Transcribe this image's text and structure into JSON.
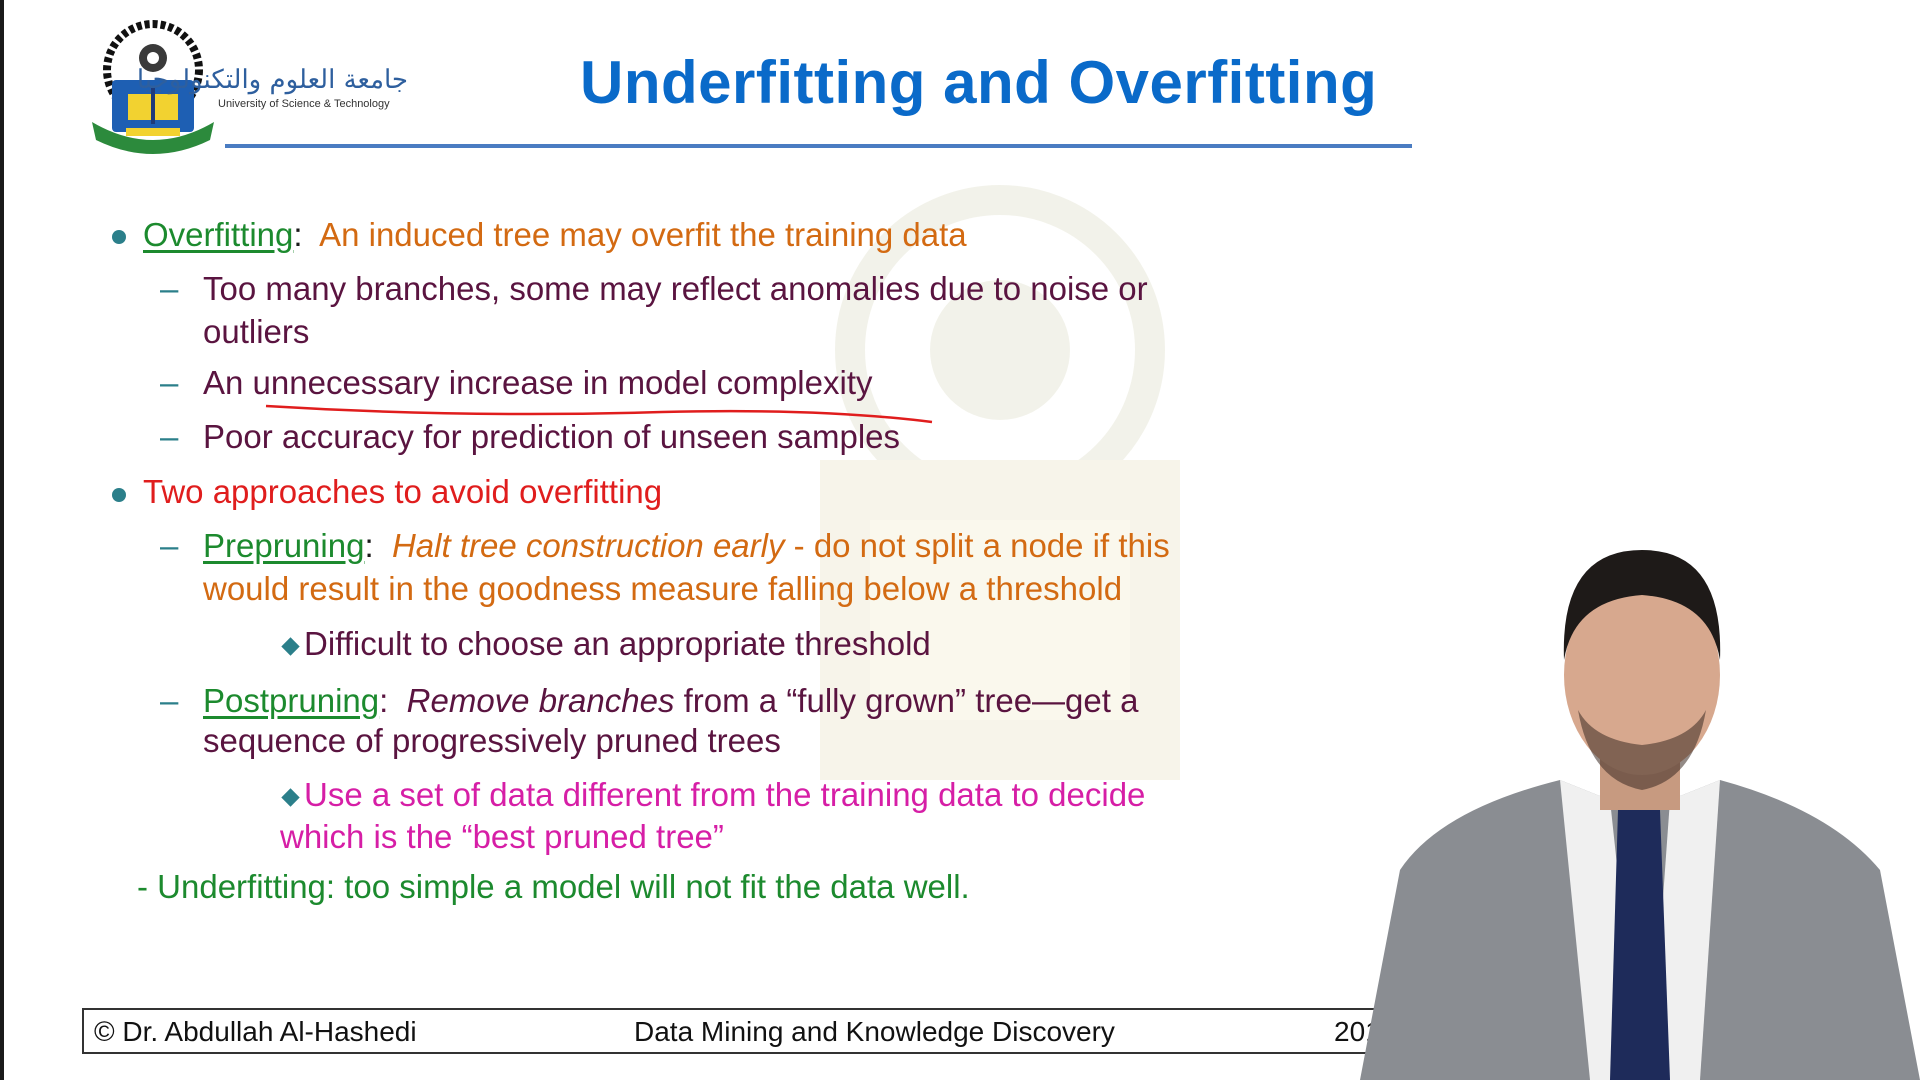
{
  "header": {
    "title": "Underfitting and Overfitting",
    "logo_arabic": "جامعة العلوم والتكنولوجيا",
    "logo_english": "University of Science & Technology"
  },
  "content": {
    "b1": {
      "label": "Overfitting",
      "colon": ":",
      "text": "An induced tree may overfit the training data"
    },
    "b1_s1_l1": "Too many branches, some may reflect anomalies due to noise or",
    "b1_s1_l2": "outliers",
    "b1_s2": "An unnecessary increase in model complexity",
    "b1_s3": "Poor accuracy for prediction of unseen samples",
    "b2": "Two approaches to avoid overfitting",
    "pre": {
      "label": "Prepruning",
      "colon": ":",
      "italic": "Halt tree construction early",
      "rest": "do not split a node if this",
      "line2": "would result in the goodness measure falling below a threshold",
      "sub": "Difficult to choose an appropriate threshold"
    },
    "post": {
      "label": "Postpruning",
      "colon": ":",
      "italic": "Remove branches",
      "rest": "from a “fully grown” tree—get a",
      "line2": "sequence of progressively pruned trees",
      "sub1": "Use a set of data different from the training data to decide",
      "sub2": "which is the “best pruned tree”"
    },
    "under": "- Underfitting: too simple a model will not fit the data well."
  },
  "footer": {
    "author": "© Dr. Abdullah Al-Hashedi",
    "course": "Data Mining and Knowledge Discovery",
    "year": "2017"
  },
  "colors": {
    "title_blue": "#0a6ac9",
    "green": "#1c8a2e",
    "orange": "#d36a12",
    "purple": "#5a1440",
    "red": "#e01d1d",
    "magenta": "#d61ea6",
    "teal_bullet": "#2b7f8a"
  }
}
